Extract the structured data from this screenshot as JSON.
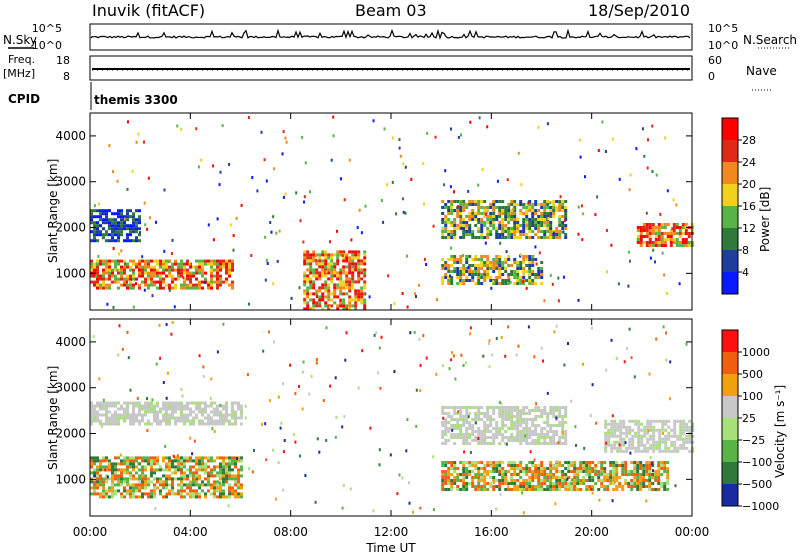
{
  "header": {
    "station": "Inuvik (fitACF)",
    "beam": "Beam 03",
    "date": "18/Sep/2010"
  },
  "strip": {
    "nsky_label": "N.Sky",
    "nsky_ticks": [
      "10^5",
      "10^0"
    ],
    "nsearch_label": "N.Search",
    "nsearch_ticks": [
      "10^5",
      "10^0"
    ],
    "freq_label_1": "Freq.",
    "freq_label_2": "[MHz]",
    "freq_ticks": [
      "18",
      "8"
    ],
    "nave_label": "Nave",
    "nave_ticks": [
      "60",
      "0"
    ],
    "cpid_label": "CPID",
    "cpid_value": "themis 3300"
  },
  "chart_data": [
    {
      "type": "heatmap",
      "name": "power",
      "ylabel": "Slant Range [km]",
      "xlabel": "Time UT",
      "yticks": [
        "1000",
        "2000",
        "3000",
        "4000"
      ],
      "ylim": [
        200,
        4500
      ],
      "xticks": [
        "00:00",
        "04:00",
        "08:00",
        "12:00",
        "16:00",
        "20:00",
        "00:00"
      ],
      "colorbar": {
        "label": "Power [dB]",
        "ticks": [
          "4",
          "8",
          "12",
          "16",
          "20",
          "24",
          "28"
        ],
        "colors": [
          "#0a1aff",
          "#1e3fa0",
          "#2f7a3a",
          "#58b448",
          "#f0d21e",
          "#f08a1e",
          "#e02a18",
          "#ff0000"
        ]
      },
      "bands": [
        {
          "t": [
            0,
            5.7
          ],
          "range": [
            700,
            1300
          ],
          "level": "high"
        },
        {
          "t": [
            8.5,
            11
          ],
          "range": [
            200,
            1500
          ],
          "level": "high"
        },
        {
          "t": [
            14,
            18
          ],
          "range": [
            800,
            1400
          ],
          "level": "mid"
        },
        {
          "t": [
            21.8,
            24
          ],
          "range": [
            1600,
            2100
          ],
          "level": "high"
        },
        {
          "t": [
            0,
            2
          ],
          "range": [
            1700,
            2400
          ],
          "level": "low"
        },
        {
          "t": [
            14,
            19
          ],
          "range": [
            1800,
            2600
          ],
          "level": "mid"
        }
      ]
    },
    {
      "type": "heatmap",
      "name": "velocity",
      "ylabel": "Slant Range [km]",
      "xlabel": "Time UT",
      "yticks": [
        "1000",
        "2000",
        "3000",
        "4000"
      ],
      "ylim": [
        200,
        4500
      ],
      "xticks": [
        "00:00",
        "04:00",
        "08:00",
        "12:00",
        "16:00",
        "20:00",
        "00:00"
      ],
      "colorbar": {
        "label": "Velocity [m s⁻¹]",
        "ticks": [
          "1000",
          "500",
          "100",
          "25",
          "−25",
          "−100",
          "−500",
          "−1000"
        ],
        "colors": [
          "#1a2aa0",
          "#2f7a3a",
          "#58b448",
          "#a8e07a",
          "#c8c8c8",
          "#f0a010",
          "#f06010",
          "#ff1010"
        ]
      },
      "bands": [
        {
          "t": [
            0,
            6
          ],
          "range": [
            600,
            1500
          ],
          "level": "mixed"
        },
        {
          "t": [
            0,
            6
          ],
          "range": [
            2200,
            2700
          ],
          "level": "ground"
        },
        {
          "t": [
            14,
            19
          ],
          "range": [
            1800,
            2600
          ],
          "level": "ground"
        },
        {
          "t": [
            20.5,
            24
          ],
          "range": [
            1600,
            2300
          ],
          "level": "ground"
        },
        {
          "t": [
            14,
            23
          ],
          "range": [
            800,
            1400
          ],
          "level": "mixed"
        }
      ]
    }
  ]
}
